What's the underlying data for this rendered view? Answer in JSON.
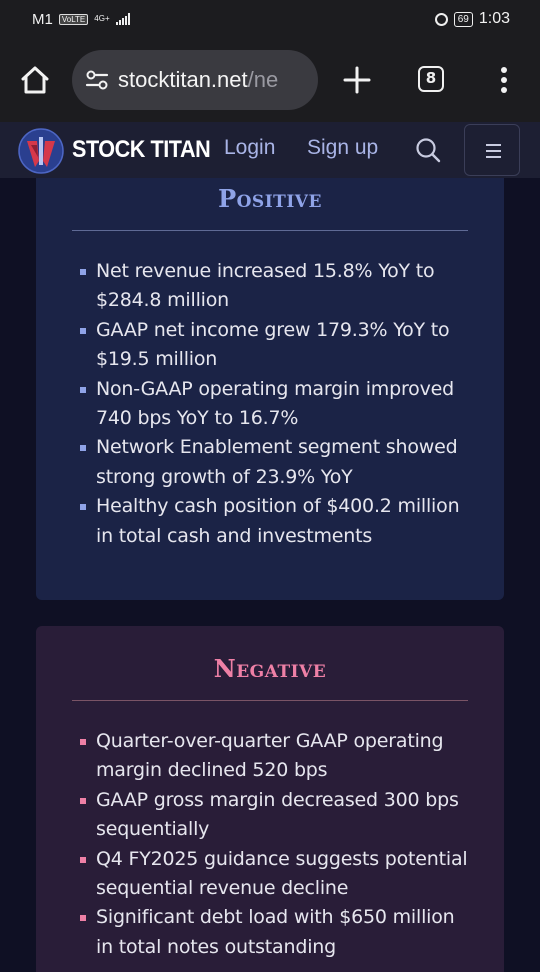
{
  "status_bar": {
    "carrier": "M1",
    "volte": "VoLTE",
    "network": "4G+",
    "battery": "69",
    "time": "1:03"
  },
  "browser": {
    "url_main": "stocktitan.net",
    "url_dim": "/ne",
    "tab_count": "8"
  },
  "site_nav": {
    "brand": "STOCK TITAN",
    "login": "Login",
    "signup": "Sign up"
  },
  "positive": {
    "title": "Positive",
    "items": [
      "Net revenue increased 15.8% YoY to $284.8 million",
      "GAAP net income grew 179.3% YoY to $19.5 million",
      "Non-GAAP operating margin improved 740 bps YoY to 16.7%",
      "Network Enablement segment showed strong growth of 23.9% YoY",
      "Healthy cash position of $400.2 million in total cash and investments"
    ]
  },
  "negative": {
    "title": "Negative",
    "items": [
      "Quarter-over-quarter GAAP operating margin declined 520 bps",
      "GAAP gross margin decreased 300 bps sequentially",
      "Q4 FY2025 guidance suggests potential sequential revenue decline",
      "Significant debt load with $650 million in total notes outstanding"
    ]
  },
  "colors": {
    "positive_accent": "#8fa3e8",
    "negative_accent": "#ee80a6",
    "positive_card": "#1b2346",
    "negative_card": "#291d38"
  }
}
